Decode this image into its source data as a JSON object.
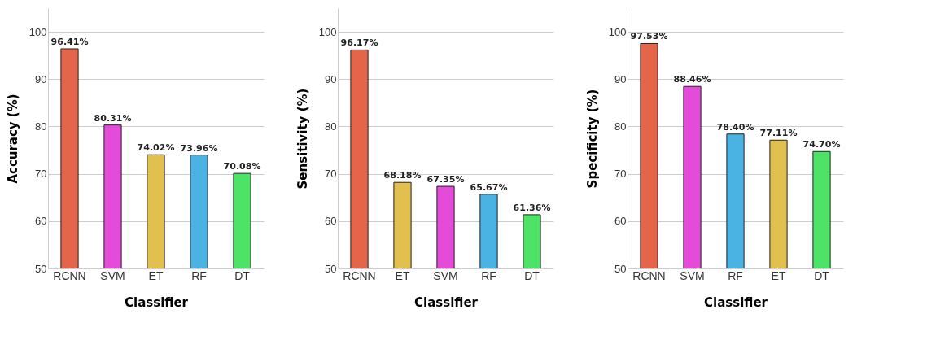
{
  "chart_data": [
    {
      "type": "bar",
      "xlabel": "Classifier",
      "ylabel": "Accuracy (%)",
      "categories": [
        "RCNN",
        "SVM",
        "ET",
        "RF",
        "DT"
      ],
      "values": [
        96.41,
        80.31,
        74.02,
        73.96,
        70.08
      ],
      "colors": [
        "#e5654a",
        "#e44bd9",
        "#e2c04e",
        "#4bb3e3",
        "#4de366"
      ],
      "value_labels": [
        "96.41%",
        "80.31%",
        "74.02%",
        "73.96%",
        "70.08%"
      ],
      "ylim": [
        50,
        105
      ],
      "yticks": [
        50,
        60,
        70,
        80,
        90,
        100
      ],
      "grid": "y",
      "legend": false
    },
    {
      "type": "bar",
      "xlabel": "Classifier",
      "ylabel": "Sensitivity (%)",
      "categories": [
        "RCNN",
        "ET",
        "SVM",
        "RF",
        "DT"
      ],
      "values": [
        96.17,
        68.18,
        67.35,
        65.67,
        61.36
      ],
      "colors": [
        "#e5654a",
        "#e2c04e",
        "#e44bd9",
        "#4bb3e3",
        "#4de366"
      ],
      "value_labels": [
        "96.17%",
        "68.18%",
        "67.35%",
        "65.67%",
        "61.36%"
      ],
      "ylim": [
        50,
        105
      ],
      "yticks": [
        50,
        60,
        70,
        80,
        90,
        100
      ],
      "grid": "y",
      "legend": false
    },
    {
      "type": "bar",
      "xlabel": "Classifier",
      "ylabel": "Specificity (%)",
      "categories": [
        "RCNN",
        "SVM",
        "RF",
        "ET",
        "DT"
      ],
      "values": [
        97.53,
        88.46,
        78.4,
        77.11,
        74.7
      ],
      "colors": [
        "#e5654a",
        "#e44bd9",
        "#4bb3e3",
        "#e2c04e",
        "#4de366"
      ],
      "value_labels": [
        "97.53%",
        "88.46%",
        "78.40%",
        "77.11%",
        "74.70%"
      ],
      "ylim": [
        50,
        105
      ],
      "yticks": [
        50,
        60,
        70,
        80,
        90,
        100
      ],
      "grid": "y",
      "legend": false
    }
  ]
}
